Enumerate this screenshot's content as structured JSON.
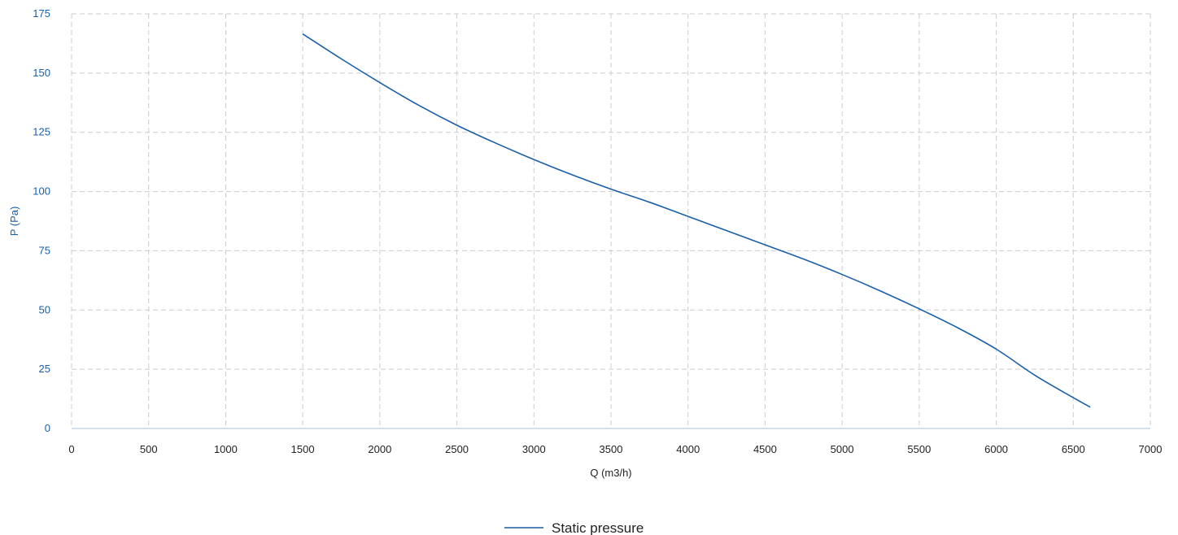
{
  "chart_data": {
    "type": "line",
    "xlabel": "Q (m3/h)",
    "ylabel": "P (Pa)",
    "xlim": [
      0,
      7000
    ],
    "ylim": [
      0,
      175
    ],
    "xticks": [
      0,
      500,
      1000,
      1500,
      2000,
      2500,
      3000,
      3500,
      4000,
      4500,
      5000,
      5500,
      6000,
      6500,
      7000
    ],
    "yticks": [
      0,
      25,
      50,
      75,
      100,
      125,
      150,
      175
    ],
    "grid": true,
    "legend_position": "bottom-center",
    "series": [
      {
        "name": "Static pressure",
        "color": "#1a5fa8",
        "x": [
          1500,
          1750,
          2000,
          2250,
          2500,
          2750,
          3000,
          3250,
          3500,
          3750,
          4000,
          4250,
          4500,
          4750,
          5000,
          5250,
          5500,
          5750,
          6000,
          6250,
          6500,
          6610
        ],
        "y": [
          166.5,
          156,
          146,
          136.5,
          128,
          120.5,
          113.5,
          107,
          101,
          95.5,
          89.5,
          83.5,
          77.5,
          71.5,
          65,
          58,
          50.5,
          42.5,
          33.5,
          22.5,
          13,
          9
        ]
      }
    ]
  }
}
